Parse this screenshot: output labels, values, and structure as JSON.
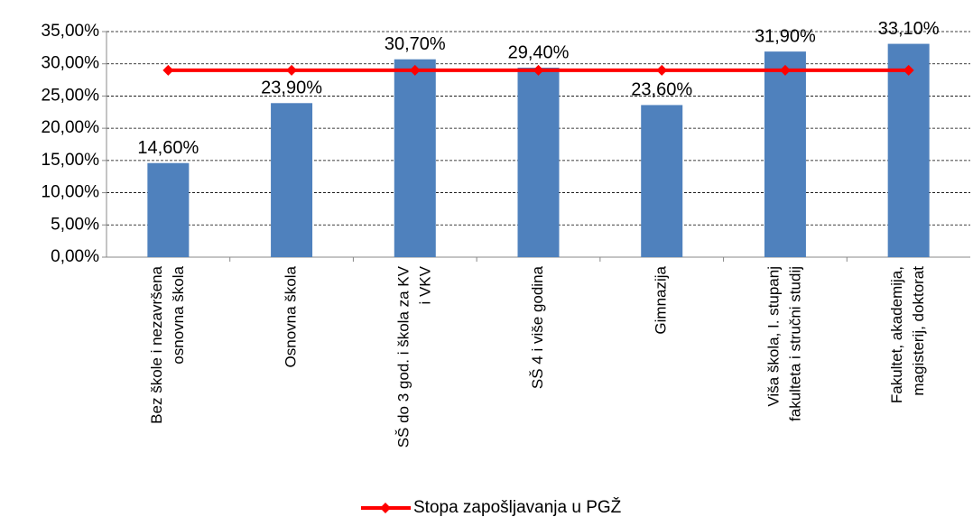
{
  "chart_data": {
    "type": "bar",
    "categories": [
      [
        "Bez škole i nezavršena",
        "osnovna škola"
      ],
      [
        "Osnovna škola"
      ],
      [
        "SŠ do 3 god. i škola za KV",
        "i VKV"
      ],
      [
        "SŠ  4 i više godina"
      ],
      [
        "Gimnazija"
      ],
      [
        "Viša škola, I. stupanj",
        "fakulteta i stručni studij"
      ],
      [
        "Fakultet, akademija,",
        "magisterij, doktorat"
      ]
    ],
    "values": [
      14.6,
      23.9,
      30.7,
      29.4,
      23.6,
      31.9,
      33.1
    ],
    "value_labels": [
      "14,60%",
      "23,90%",
      "30,70%",
      "29,40%",
      "23,60%",
      "31,90%",
      "33,10%"
    ],
    "color": "#4f81bd",
    "series": [
      {
        "name": "Stopa zapošljavanja u PGŽ",
        "color": "#ff0000",
        "type": "line",
        "values": [
          29,
          29,
          29,
          29,
          29,
          29,
          29
        ]
      }
    ],
    "ylim": [
      0,
      35
    ],
    "yticks": [
      {
        "value": 0,
        "label": "0,00%"
      },
      {
        "value": 5,
        "label": "5,00%"
      },
      {
        "value": 10,
        "label": "10,00%"
      },
      {
        "value": 15,
        "label": "15,00%"
      },
      {
        "value": 20,
        "label": "20,00%"
      },
      {
        "value": 25,
        "label": "25,00%"
      },
      {
        "value": 30,
        "label": "30,00%"
      },
      {
        "value": 35,
        "label": "35,00%"
      }
    ],
    "grid": true,
    "legend": "bottom"
  }
}
